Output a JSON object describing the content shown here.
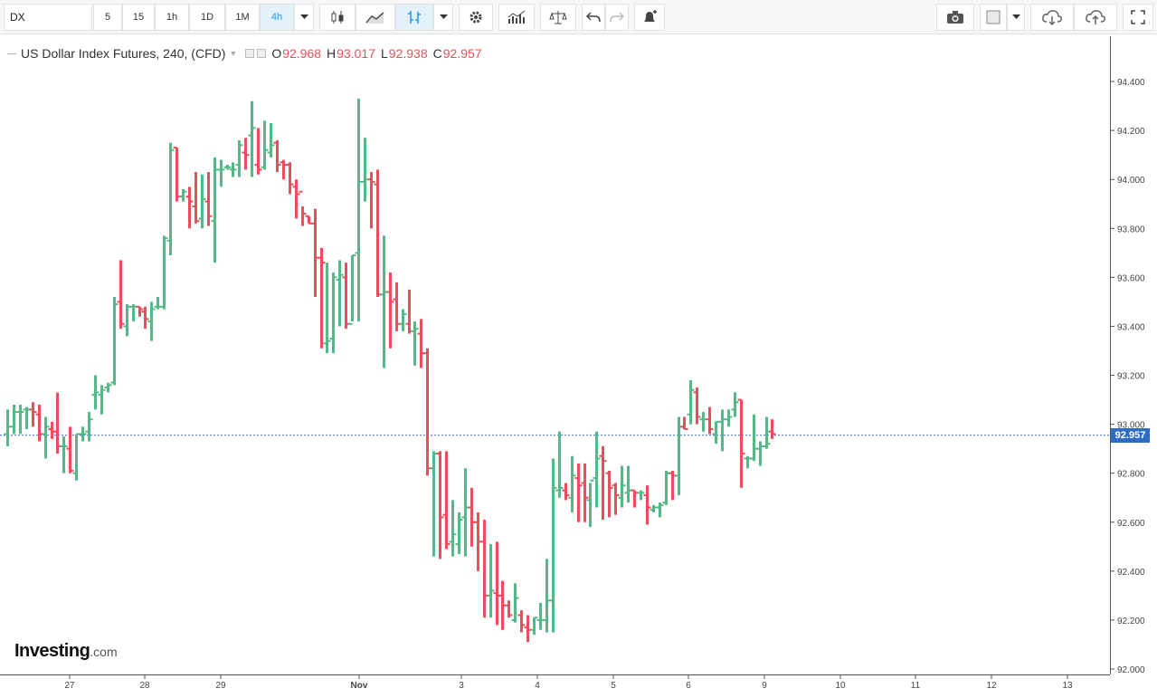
{
  "toolbar": {
    "symbol": "DX",
    "intervals": [
      {
        "label": "5",
        "active": false
      },
      {
        "label": "15",
        "active": false
      },
      {
        "label": "1h",
        "active": false
      },
      {
        "label": "1D",
        "active": false
      },
      {
        "label": "1M",
        "active": false
      },
      {
        "label": "4h",
        "active": true
      }
    ]
  },
  "legend": {
    "title": "US Dollar Index Futures, 240, (CFD)",
    "open_label": "O",
    "open": "92.968",
    "high_label": "H",
    "high": "93.017",
    "low_label": "L",
    "low": "92.938",
    "close_label": "C",
    "close": "92.957"
  },
  "logo": {
    "main": "Investing",
    "suffix": ".com"
  },
  "current_price": "92.957",
  "colors": {
    "up": "#53b987",
    "down": "#eb4d5c",
    "price_line": "#2f6dc5"
  },
  "chart_data": {
    "type": "bar",
    "title": "US Dollar Index Futures, 240, (CFD)",
    "ylim": [
      92.0,
      94.5
    ],
    "y_ticks": [
      "94.400",
      "94.200",
      "94.000",
      "93.800",
      "93.600",
      "93.400",
      "93.200",
      "93.000",
      "92.800",
      "92.600",
      "92.400",
      "92.200",
      "92.000"
    ],
    "x_ticks": [
      "27",
      "28",
      "29",
      "Nov",
      "3",
      "4",
      "5",
      "6",
      "9",
      "10",
      "11",
      "12",
      "13"
    ],
    "grid": false,
    "current_price": 92.957,
    "bars": [
      [
        92.96,
        93.06,
        92.91,
        92.99
      ],
      [
        92.99,
        93.08,
        92.96,
        93.05
      ],
      [
        93.05,
        93.08,
        92.96,
        93.05
      ],
      [
        93.06,
        93.07,
        92.98,
        93.06
      ],
      [
        93.06,
        93.09,
        92.99,
        93.05
      ],
      [
        93.04,
        93.08,
        92.93,
        92.96
      ],
      [
        92.96,
        93.03,
        92.86,
        92.99
      ],
      [
        92.98,
        93.01,
        92.94,
        92.97
      ],
      [
        92.97,
        93.13,
        92.88,
        92.91
      ],
      [
        92.91,
        92.95,
        92.8,
        92.91
      ],
      [
        92.9,
        92.99,
        92.8,
        92.81
      ],
      [
        92.8,
        92.96,
        92.77,
        92.96
      ],
      [
        92.96,
        92.99,
        92.93,
        92.96
      ],
      [
        92.97,
        93.05,
        92.93,
        93.02
      ],
      [
        93.12,
        93.2,
        93.06,
        93.13
      ],
      [
        93.12,
        93.16,
        93.04,
        93.14
      ],
      [
        93.15,
        93.17,
        93.13,
        93.16
      ],
      [
        93.17,
        93.52,
        93.16,
        93.49
      ],
      [
        93.5,
        93.67,
        93.39,
        93.41
      ],
      [
        93.4,
        93.49,
        93.36,
        93.48
      ],
      [
        93.48,
        93.49,
        93.42,
        93.48
      ],
      [
        93.48,
        93.48,
        93.44,
        93.47
      ],
      [
        93.46,
        93.48,
        93.39,
        93.43
      ],
      [
        93.42,
        93.5,
        93.34,
        93.47
      ],
      [
        93.48,
        93.52,
        93.47,
        93.48
      ],
      [
        93.48,
        93.77,
        93.47,
        93.76
      ],
      [
        93.75,
        94.15,
        93.69,
        94.12
      ],
      [
        94.13,
        94.13,
        93.91,
        93.93
      ],
      [
        93.93,
        93.96,
        93.91,
        93.95
      ],
      [
        93.93,
        93.97,
        93.8,
        93.91
      ],
      [
        93.89,
        94.03,
        93.82,
        93.83
      ],
      [
        93.84,
        94.02,
        93.8,
        93.92
      ],
      [
        93.91,
        94.03,
        93.81,
        93.85
      ],
      [
        93.83,
        94.09,
        93.66,
        94.04
      ],
      [
        94.04,
        94.08,
        93.97,
        94.04
      ],
      [
        94.05,
        94.06,
        94.04,
        94.05
      ],
      [
        94.04,
        94.07,
        94.01,
        94.04
      ],
      [
        94.06,
        94.16,
        94.01,
        94.14
      ],
      [
        94.11,
        94.17,
        94.04,
        94.1
      ],
      [
        94.18,
        94.32,
        94.01,
        94.21
      ],
      [
        94.06,
        94.21,
        94.02,
        94.04
      ],
      [
        94.05,
        94.24,
        94.04,
        94.12
      ],
      [
        94.11,
        94.23,
        94.09,
        94.14
      ],
      [
        94.15,
        94.16,
        94.03,
        94.06
      ],
      [
        94.07,
        94.08,
        94.0,
        94.06
      ],
      [
        94.06,
        94.07,
        93.94,
        93.98
      ],
      [
        93.97,
        94.0,
        93.84,
        93.94
      ],
      [
        93.95,
        93.89,
        93.81,
        93.86
      ],
      [
        93.85,
        93.85,
        93.82,
        93.82
      ],
      [
        93.82,
        93.88,
        93.52,
        93.68
      ],
      [
        93.68,
        93.72,
        93.31,
        93.66
      ],
      [
        93.33,
        93.66,
        93.29,
        93.34
      ],
      [
        93.35,
        93.62,
        93.29,
        93.6
      ],
      [
        93.59,
        93.67,
        93.4,
        93.61
      ],
      [
        93.6,
        93.66,
        93.39,
        93.41
      ],
      [
        93.41,
        93.69,
        93.42,
        93.69
      ],
      [
        93.7,
        94.33,
        93.42,
        93.99
      ],
      [
        93.99,
        94.17,
        93.91,
        94.0
      ],
      [
        94.0,
        94.03,
        93.8,
        93.99
      ],
      [
        93.98,
        94.04,
        93.52,
        93.53
      ],
      [
        93.53,
        93.77,
        93.23,
        93.54
      ],
      [
        93.54,
        93.62,
        93.31,
        93.5
      ],
      [
        93.51,
        93.58,
        93.38,
        93.41
      ],
      [
        93.41,
        93.47,
        93.38,
        93.45
      ],
      [
        93.41,
        93.55,
        93.37,
        93.38
      ],
      [
        93.38,
        93.42,
        93.24,
        93.39
      ],
      [
        93.37,
        93.43,
        93.23,
        93.29
      ],
      [
        93.29,
        93.31,
        92.79,
        92.82
      ],
      [
        92.82,
        92.89,
        92.46,
        92.88
      ],
      [
        92.88,
        92.89,
        92.45,
        92.62
      ],
      [
        92.63,
        92.89,
        92.49,
        92.51
      ],
      [
        92.52,
        92.69,
        92.46,
        92.55
      ],
      [
        92.51,
        92.64,
        92.47,
        92.61
      ],
      [
        92.62,
        92.82,
        92.46,
        92.66
      ],
      [
        92.66,
        92.74,
        92.5,
        92.6
      ],
      [
        92.6,
        92.64,
        92.4,
        92.52
      ],
      [
        92.52,
        92.61,
        92.21,
        92.3
      ],
      [
        92.3,
        92.51,
        92.21,
        92.32
      ],
      [
        92.31,
        92.52,
        92.18,
        92.3
      ],
      [
        92.3,
        92.36,
        92.16,
        92.26
      ],
      [
        92.26,
        92.28,
        92.21,
        92.22
      ],
      [
        92.2,
        92.35,
        92.19,
        92.29
      ],
      [
        92.22,
        92.24,
        92.15,
        92.18
      ],
      [
        92.17,
        92.22,
        92.11,
        92.16
      ],
      [
        92.16,
        92.21,
        92.14,
        92.21
      ],
      [
        92.2,
        92.27,
        92.16,
        92.2
      ],
      [
        92.2,
        92.45,
        92.15,
        92.28
      ],
      [
        92.28,
        92.86,
        92.15,
        92.74
      ],
      [
        92.73,
        92.97,
        92.7,
        92.74
      ],
      [
        92.73,
        92.76,
        92.69,
        92.71
      ],
      [
        92.7,
        92.87,
        92.64,
        92.79
      ],
      [
        92.78,
        92.84,
        92.6,
        92.75
      ],
      [
        92.76,
        92.84,
        92.6,
        92.7
      ],
      [
        92.69,
        92.76,
        92.58,
        92.77
      ],
      [
        92.78,
        92.97,
        92.66,
        92.86
      ],
      [
        92.87,
        92.91,
        92.61,
        92.85
      ],
      [
        92.8,
        92.81,
        92.62,
        92.74
      ],
      [
        92.75,
        92.76,
        92.63,
        92.71
      ],
      [
        92.7,
        92.83,
        92.66,
        92.75
      ],
      [
        92.72,
        92.83,
        92.68,
        92.73
      ],
      [
        92.73,
        92.73,
        92.66,
        92.72
      ],
      [
        92.72,
        92.73,
        92.69,
        92.72
      ],
      [
        92.71,
        92.75,
        92.59,
        92.66
      ],
      [
        92.65,
        92.67,
        92.64,
        92.66
      ],
      [
        92.66,
        92.68,
        92.62,
        92.67
      ],
      [
        92.68,
        92.81,
        92.67,
        92.8
      ],
      [
        92.8,
        92.81,
        92.69,
        92.79
      ],
      [
        92.79,
        93.03,
        92.71,
        92.99
      ],
      [
        92.99,
        93.03,
        92.98,
        92.98
      ],
      [
        93.04,
        93.18,
        93.0,
        93.14
      ],
      [
        93.13,
        93.15,
        93.0,
        93.03
      ],
      [
        93.02,
        93.05,
        92.97,
        93.02
      ],
      [
        93.02,
        93.07,
        92.96,
        92.98
      ],
      [
        92.96,
        93.01,
        92.92,
        93.01
      ],
      [
        93.01,
        93.06,
        92.89,
        93.02
      ],
      [
        93.02,
        93.06,
        92.99,
        93.03
      ],
      [
        93.06,
        93.13,
        93.03,
        93.09
      ],
      [
        93.1,
        93.1,
        92.74,
        92.88
      ],
      [
        92.86,
        92.87,
        92.82,
        92.86
      ],
      [
        92.86,
        93.04,
        92.85,
        92.9
      ],
      [
        92.9,
        92.93,
        92.83,
        92.91
      ],
      [
        92.91,
        93.03,
        92.9,
        92.92
      ],
      [
        92.97,
        93.02,
        92.94,
        92.96
      ]
    ]
  }
}
